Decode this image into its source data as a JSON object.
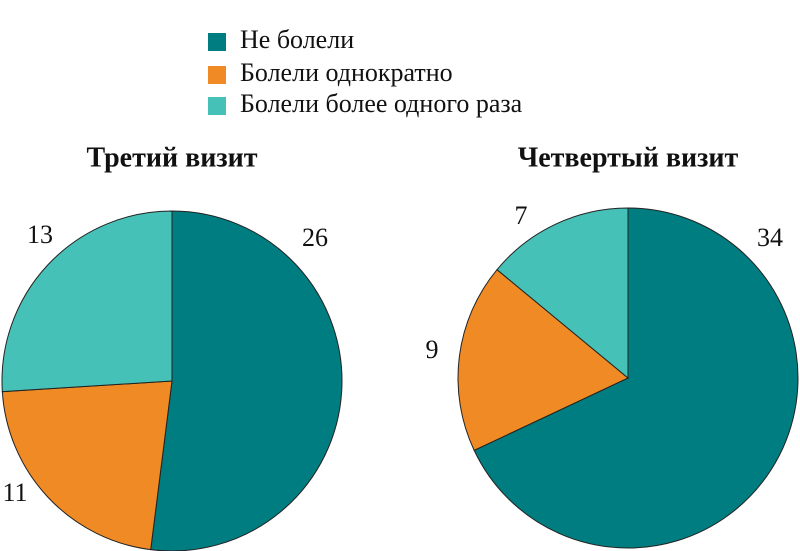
{
  "legend": {
    "labels": [
      "Не болели",
      "Болели однократно",
      "Болели более одного раза"
    ],
    "colors": [
      "#007d80",
      "#f08a24",
      "#45c1b8"
    ]
  },
  "chart_data": [
    {
      "type": "pie",
      "title": "Третий визит",
      "values": [
        26,
        11,
        13
      ]
    },
    {
      "type": "pie",
      "title": "Четвертый визит",
      "values": [
        34,
        9,
        7
      ]
    }
  ]
}
